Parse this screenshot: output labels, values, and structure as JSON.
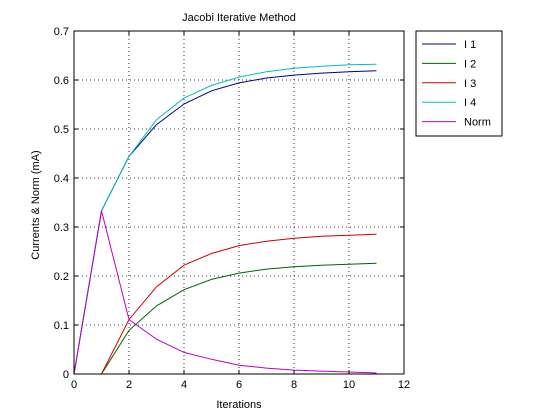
{
  "chart_data": {
    "type": "line",
    "title": "Jacobi Iterative Method",
    "xlabel": "Iterations",
    "ylabel": "Currents & Norm (mA)",
    "xlim": [
      0,
      12
    ],
    "ylim": [
      0,
      0.7
    ],
    "xticks": [
      0,
      2,
      4,
      6,
      8,
      10,
      12
    ],
    "yticks": [
      0,
      0.1,
      0.2,
      0.3,
      0.4,
      0.5,
      0.6,
      0.7
    ],
    "grid": true,
    "legend_position": "outside-top-right",
    "x": [
      0,
      1,
      2,
      3,
      4,
      5,
      6,
      7,
      8,
      9,
      10,
      11
    ],
    "series": [
      {
        "name": "I 1",
        "color": "#00008b",
        "values": [
          0,
          0.333,
          0.444,
          0.509,
          0.551,
          0.578,
          0.594,
          0.604,
          0.61,
          0.614,
          0.617,
          0.619
        ]
      },
      {
        "name": "I 2",
        "color": "#006400",
        "values": [
          0,
          0,
          0.089,
          0.139,
          0.172,
          0.193,
          0.206,
          0.214,
          0.219,
          0.222,
          0.224,
          0.226
        ]
      },
      {
        "name": "I 3",
        "color": "#cc0000",
        "values": [
          0,
          0,
          0.111,
          0.178,
          0.222,
          0.246,
          0.262,
          0.271,
          0.277,
          0.281,
          0.283,
          0.285
        ]
      },
      {
        "name": "I 4",
        "color": "#00bfbf",
        "values": [
          0,
          0.333,
          0.444,
          0.519,
          0.563,
          0.589,
          0.606,
          0.617,
          0.624,
          0.628,
          0.631,
          0.632
        ]
      },
      {
        "name": "Norm",
        "color": "#bf00bf",
        "values": [
          0,
          0.333,
          0.111,
          0.071,
          0.044,
          0.03,
          0.018,
          0.012,
          0.008,
          0.006,
          0.004,
          0.002
        ]
      }
    ]
  }
}
